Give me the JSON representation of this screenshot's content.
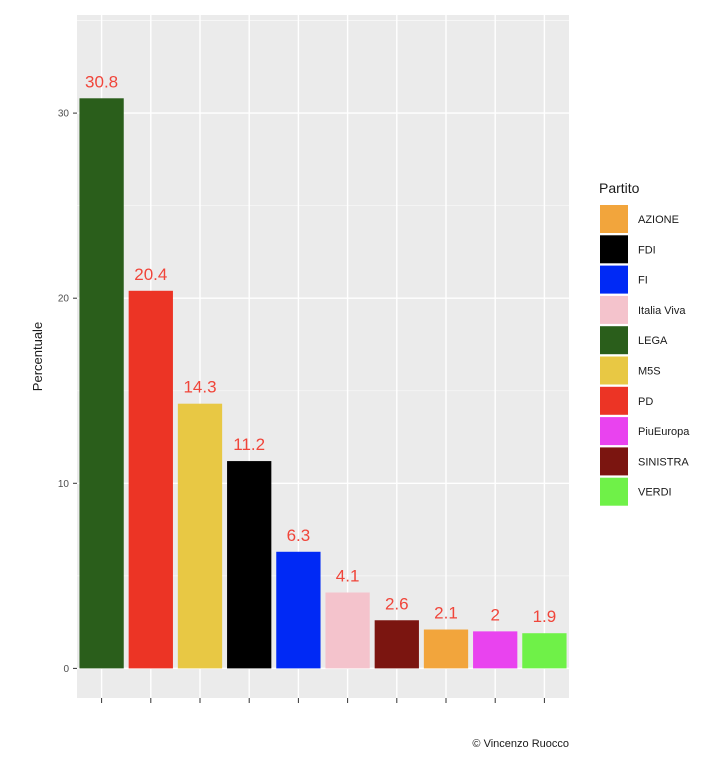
{
  "chart_data": {
    "type": "bar",
    "categories": [
      "LEGA",
      "PD",
      "M5S",
      "FDI",
      "FI",
      "Italia Viva",
      "SINISTRA",
      "AZIONE",
      "PiuEuropa",
      "VERDI"
    ],
    "values": [
      30.8,
      20.4,
      14.3,
      11.2,
      6.3,
      4.1,
      2.6,
      2.1,
      2,
      1.9
    ],
    "data_labels": [
      "30.8",
      "20.4",
      "14.3",
      "11.2",
      "6.3",
      "4.1",
      "2.6",
      "2.1",
      "2",
      "1.9"
    ],
    "colors": [
      "#2a5e1b",
      "#ec3425",
      "#e8c844",
      "#000000",
      "#0029f5",
      "#f4c3cc",
      "#7b1510",
      "#f2a53c",
      "#e943ef",
      "#6ff148"
    ],
    "title": "",
    "xlabel": "",
    "ylabel": "Percentuale",
    "ylim": [
      -1.6,
      35.3
    ],
    "yticks": [
      0,
      10,
      20,
      30
    ],
    "ytick_labels": [
      "0",
      "10",
      "20",
      "30"
    ],
    "grid": true,
    "legend": {
      "title": "Partito",
      "position": "right",
      "entries": [
        {
          "label": "AZIONE",
          "color": "#f2a53c"
        },
        {
          "label": "FDI",
          "color": "#000000"
        },
        {
          "label": "FI",
          "color": "#0029f5"
        },
        {
          "label": "Italia Viva",
          "color": "#f4c3cc"
        },
        {
          "label": "LEGA",
          "color": "#2a5e1b"
        },
        {
          "label": "M5S",
          "color": "#e8c844"
        },
        {
          "label": "PD",
          "color": "#ec3425"
        },
        {
          "label": "PiuEuropa",
          "color": "#e943ef"
        },
        {
          "label": "SINISTRA",
          "color": "#7b1510"
        },
        {
          "label": "VERDI",
          "color": "#6ff148"
        }
      ]
    },
    "caption": "© Vincenzo Ruocco",
    "panel_background": "#ebebeb",
    "label_color": "#f0453a"
  }
}
